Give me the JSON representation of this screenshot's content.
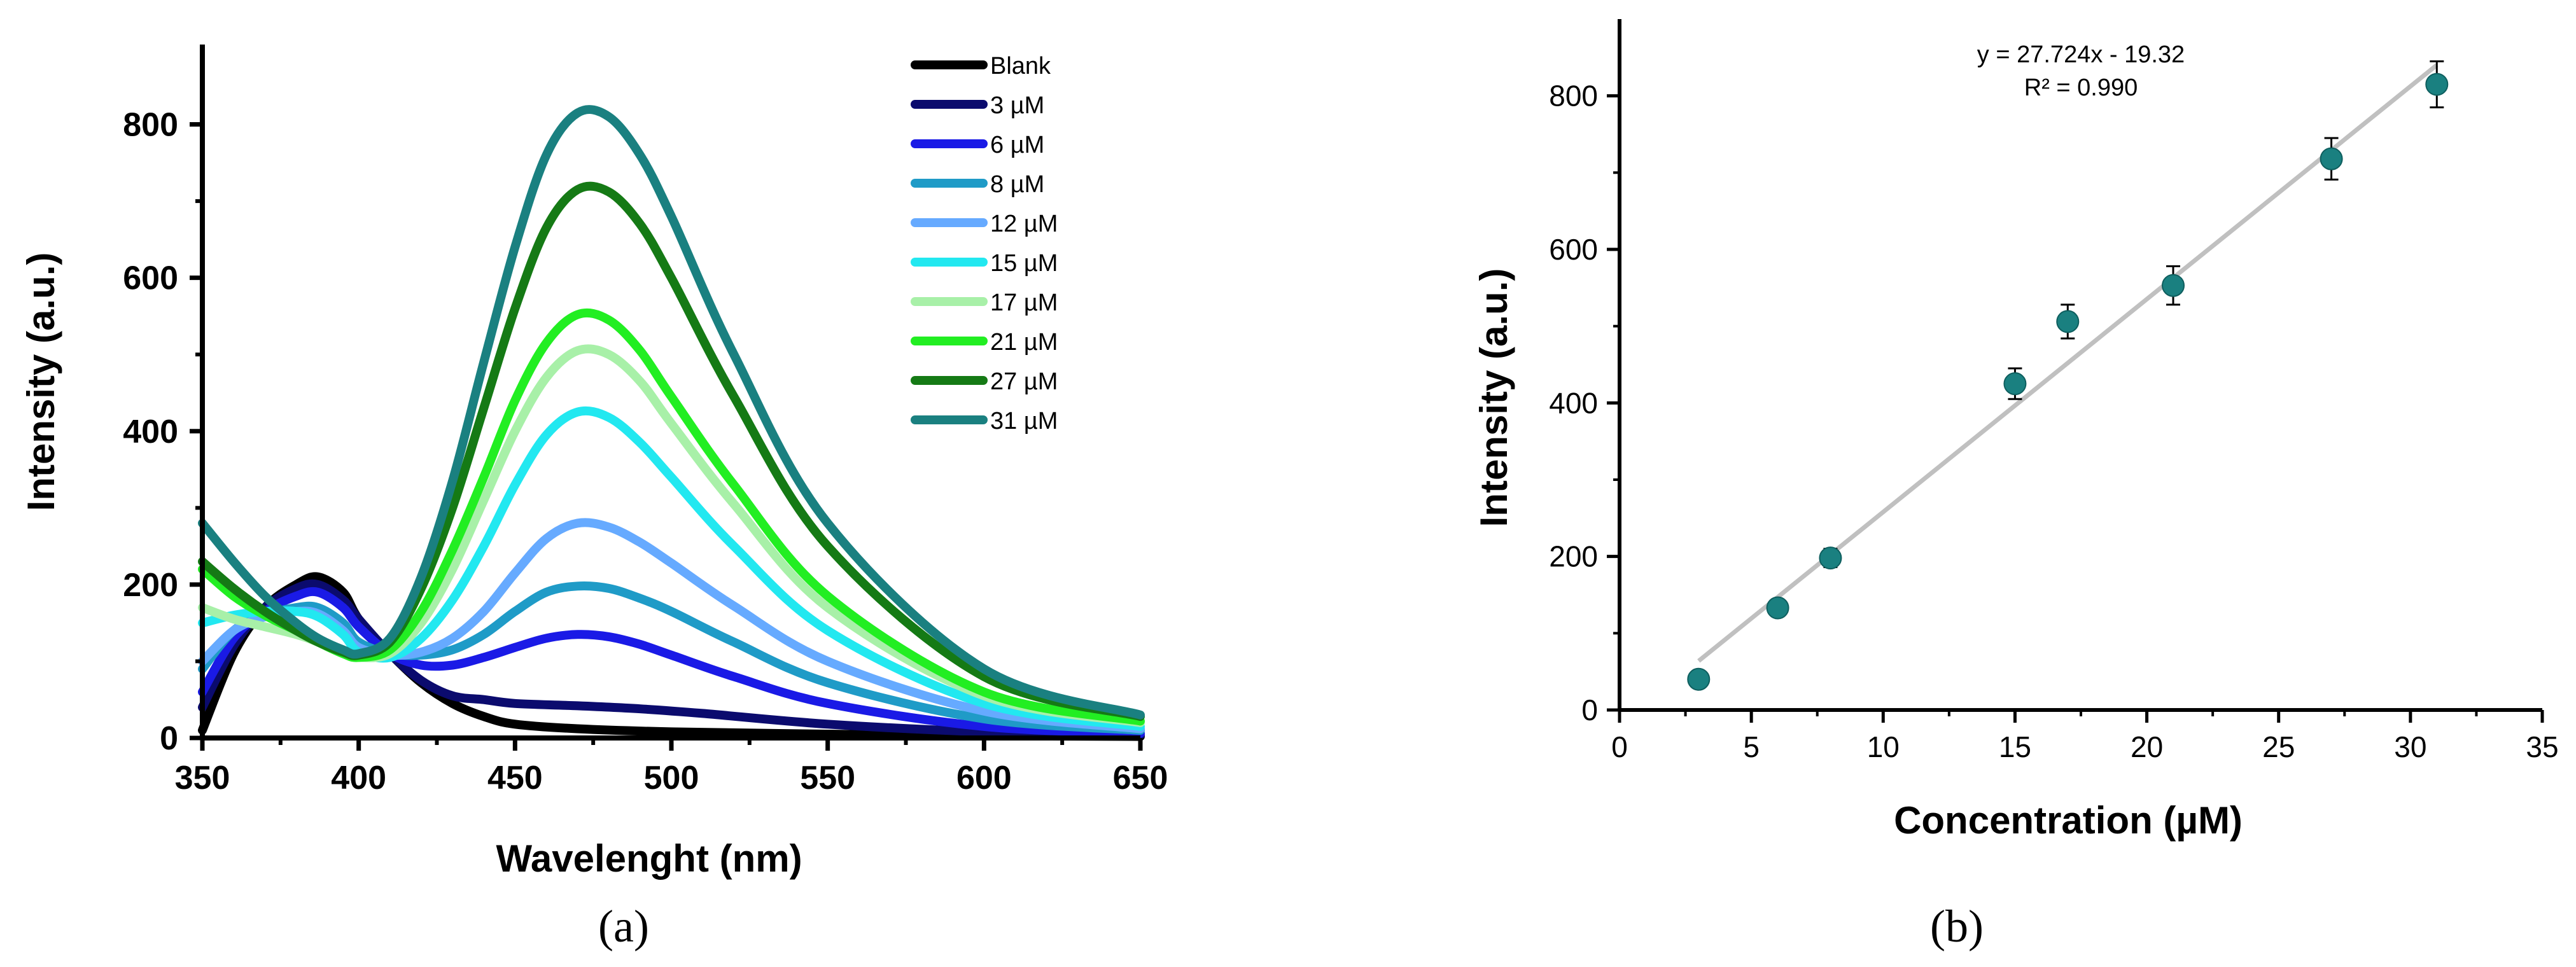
{
  "chart_data": [
    {
      "panel": "(a)",
      "type": "line",
      "xlabel": "Wavelenght (nm)",
      "ylabel": "Intensity (a.u.)",
      "xlim": [
        350,
        650
      ],
      "ylim": [
        0,
        900
      ],
      "xticks": [
        350,
        400,
        450,
        500,
        550,
        600,
        650
      ],
      "yticks": [
        0,
        200,
        400,
        600,
        800
      ],
      "legend_position": "top-right",
      "series": [
        {
          "name": "Blank",
          "color": "#000000",
          "x": [
            350,
            360,
            370,
            380,
            387,
            395,
            400,
            410,
            420,
            430,
            440,
            450,
            470,
            500,
            550,
            600,
            650
          ],
          "y": [
            10,
            110,
            170,
            200,
            210,
            190,
            155,
            110,
            72,
            45,
            28,
            18,
            12,
            8,
            5,
            3,
            2
          ]
        },
        {
          "name": "3 µM",
          "color": "#0b0b6e",
          "x": [
            350,
            360,
            370,
            380,
            387,
            395,
            400,
            410,
            420,
            430,
            440,
            450,
            470,
            490,
            510,
            550,
            600,
            650
          ],
          "y": [
            40,
            120,
            170,
            195,
            200,
            180,
            155,
            110,
            75,
            55,
            50,
            45,
            42,
            38,
            32,
            18,
            8,
            4
          ]
        },
        {
          "name": "6 µM",
          "color": "#1a1ae6",
          "x": [
            350,
            360,
            370,
            380,
            387,
            395,
            400,
            410,
            420,
            430,
            440,
            450,
            460,
            470,
            480,
            490,
            500,
            520,
            550,
            600,
            650
          ],
          "y": [
            60,
            130,
            165,
            185,
            190,
            170,
            145,
            110,
            95,
            95,
            105,
            118,
            130,
            135,
            132,
            122,
            108,
            80,
            45,
            15,
            6
          ]
        },
        {
          "name": "8 µM",
          "color": "#1f9bc7",
          "x": [
            350,
            360,
            370,
            380,
            387,
            395,
            400,
            410,
            420,
            430,
            440,
            450,
            460,
            470,
            480,
            490,
            500,
            520,
            550,
            600,
            650
          ],
          "y": [
            90,
            140,
            160,
            170,
            170,
            150,
            125,
            110,
            108,
            115,
            135,
            165,
            190,
            198,
            195,
            182,
            165,
            125,
            72,
            25,
            10
          ]
        },
        {
          "name": "12 µM",
          "color": "#66aaff",
          "x": [
            350,
            360,
            370,
            380,
            387,
            395,
            400,
            410,
            420,
            430,
            440,
            450,
            460,
            470,
            480,
            490,
            500,
            520,
            550,
            600,
            650
          ],
          "y": [
            100,
            140,
            158,
            165,
            162,
            140,
            118,
            108,
            112,
            130,
            165,
            215,
            260,
            280,
            275,
            255,
            228,
            172,
            100,
            35,
            12
          ]
        },
        {
          "name": "15 µM",
          "color": "#22e8f0",
          "x": [
            350,
            360,
            370,
            380,
            387,
            395,
            400,
            410,
            420,
            430,
            440,
            450,
            460,
            470,
            480,
            490,
            500,
            520,
            550,
            600,
            650
          ],
          "y": [
            150,
            160,
            165,
            165,
            158,
            135,
            112,
            105,
            130,
            180,
            250,
            330,
            395,
            425,
            418,
            385,
            340,
            250,
            140,
            45,
            15
          ]
        },
        {
          "name": "17 µM",
          "color": "#a8f0a8",
          "x": [
            350,
            360,
            370,
            380,
            387,
            395,
            400,
            410,
            420,
            430,
            440,
            450,
            460,
            470,
            480,
            490,
            500,
            520,
            550,
            600,
            650
          ],
          "y": [
            170,
            155,
            145,
            135,
            125,
            110,
            105,
            110,
            150,
            220,
            310,
            400,
            470,
            505,
            500,
            465,
            410,
            305,
            170,
            55,
            20
          ]
        },
        {
          "name": "21 µM",
          "color": "#22ee22",
          "x": [
            350,
            360,
            370,
            380,
            387,
            395,
            400,
            410,
            420,
            430,
            440,
            450,
            460,
            470,
            480,
            490,
            500,
            520,
            550,
            600,
            650
          ],
          "y": [
            220,
            185,
            160,
            140,
            125,
            110,
            105,
            115,
            165,
            245,
            340,
            440,
            515,
            552,
            545,
            505,
            445,
            330,
            185,
            60,
            22
          ]
        },
        {
          "name": "27 µM",
          "color": "#157a15",
          "x": [
            350,
            360,
            370,
            380,
            387,
            395,
            400,
            410,
            420,
            430,
            440,
            450,
            460,
            470,
            480,
            490,
            500,
            520,
            550,
            600,
            650
          ],
          "y": [
            230,
            195,
            165,
            140,
            125,
            112,
            108,
            125,
            195,
            300,
            430,
            560,
            665,
            715,
            712,
            670,
            600,
            445,
            250,
            80,
            28
          ]
        },
        {
          "name": "31 µM",
          "color": "#1a8080",
          "x": [
            350,
            360,
            370,
            380,
            387,
            395,
            400,
            410,
            420,
            430,
            440,
            450,
            460,
            470,
            480,
            490,
            500,
            520,
            550,
            600,
            650
          ],
          "y": [
            280,
            230,
            185,
            150,
            130,
            115,
            110,
            130,
            210,
            335,
            490,
            640,
            760,
            815,
            810,
            760,
            680,
            500,
            280,
            90,
            30
          ]
        }
      ]
    },
    {
      "panel": "(b)",
      "type": "scatter",
      "xlabel": "Concentration (µM)",
      "ylabel": "Intensity (a.u.)",
      "xlim": [
        0,
        35
      ],
      "ylim": [
        0,
        900
      ],
      "xticks": [
        0,
        5,
        10,
        15,
        20,
        25,
        30,
        35
      ],
      "yticks": [
        0,
        200,
        400,
        600,
        800
      ],
      "marker_color": "#1a8080",
      "fit_color": "#c0c0c0",
      "points": {
        "x": [
          3,
          6,
          8,
          15,
          17,
          21,
          27,
          31
        ],
        "y": [
          40,
          133,
          198,
          425,
          506,
          553,
          718,
          815
        ],
        "error": [
          10,
          10,
          12,
          20,
          22,
          25,
          27,
          30
        ]
      },
      "fit": {
        "slope": 27.724,
        "intercept": -19.32,
        "x_range": [
          3,
          31
        ]
      },
      "equation": "y = 27.724x - 19.32",
      "r_squared": "R² = 0.990"
    }
  ]
}
